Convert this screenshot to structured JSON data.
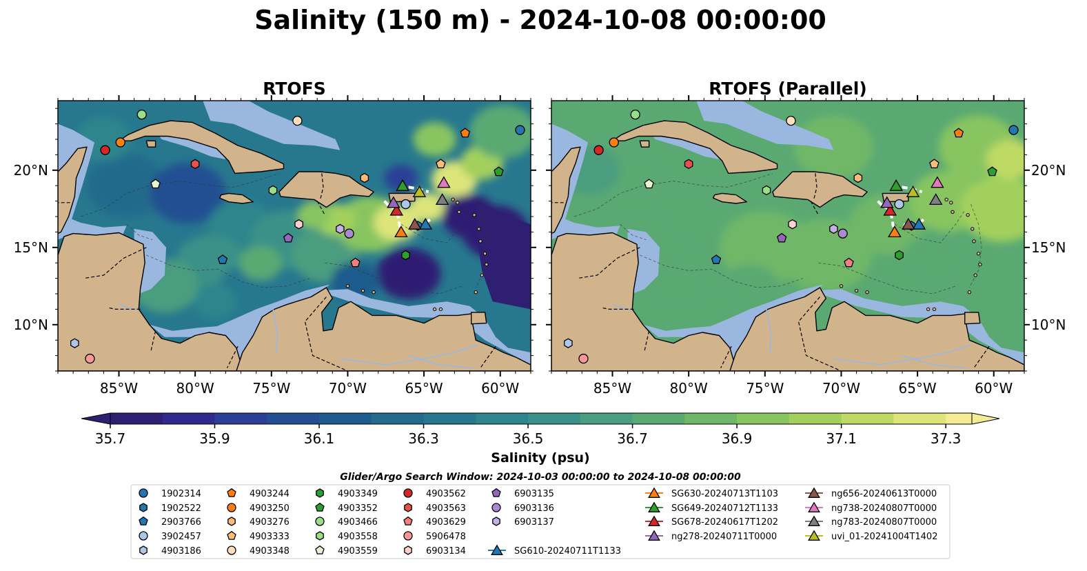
{
  "figure": {
    "title": "Salinity (150 m) - 2024-10-08 00:00:00",
    "search_window": "Glider/Argo Search Window: 2024-10-03 00:00:00 to 2024-10-08 00:00:00"
  },
  "colors": {
    "land": "#d2b48c",
    "shelf": "#9ab7e0",
    "glider_track": "#ffffff"
  },
  "chart_data": {
    "type": "heatmap",
    "xlim": [
      -89,
      -58
    ],
    "ylim": [
      7,
      24.5
    ],
    "x_ticks": [
      -85,
      -80,
      -75,
      -70,
      -65,
      -60
    ],
    "x_tick_labels": [
      "85°W",
      "80°W",
      "75°W",
      "70°W",
      "65°W",
      "60°W"
    ],
    "y_ticks": [
      10,
      15,
      20
    ],
    "y_tick_labels": [
      "10°N",
      "15°N",
      "20°N"
    ],
    "panels": [
      {
        "title": "RTOFS"
      },
      {
        "title": "RTOFS (Parallel)"
      }
    ],
    "colorbar": {
      "label": "Salinity (psu)",
      "min": 35.7,
      "max": 37.35,
      "extend": "both",
      "ticks": [
        35.7,
        35.9,
        36.1,
        36.3,
        36.5,
        36.7,
        36.9,
        37.1,
        37.3
      ],
      "tick_labels": [
        "35.7",
        "35.9",
        "36.1",
        "36.3",
        "36.5",
        "36.7",
        "36.9",
        "37.1",
        "37.3"
      ],
      "levels": [
        35.7,
        35.8,
        35.9,
        36.0,
        36.1,
        36.2,
        36.3,
        36.4,
        36.5,
        36.6,
        36.7,
        36.8,
        36.9,
        37.0,
        37.1,
        37.2,
        37.3,
        37.35
      ],
      "colors": [
        "#2e1f73",
        "#302a8c",
        "#2c3f96",
        "#234f92",
        "#1f5b8c",
        "#236a8c",
        "#27788e",
        "#2e858c",
        "#3a9188",
        "#4b9d7f",
        "#5aa973",
        "#6fb768",
        "#88c561",
        "#a3d05d",
        "#bfd965",
        "#dce47a",
        "#f4ec95"
      ]
    },
    "series": [
      {
        "name": "1902314",
        "marker": "circle",
        "color": "#1f77b4",
        "lon": -58.7,
        "lat": 22.6
      },
      {
        "name": "1902522",
        "marker": "hexagon",
        "color": "#1f77b4",
        "lon": -65.4,
        "lat": 16.4
      },
      {
        "name": "2903766",
        "marker": "pentagon",
        "color": "#1f77b4",
        "lon": -78.2,
        "lat": 14.2
      },
      {
        "name": "3902457",
        "marker": "circle",
        "color": "#aec7e8",
        "lon": -66.2,
        "lat": 17.8
      },
      {
        "name": "4903186",
        "marker": "hexagon",
        "color": "#aec7e8",
        "lon": -87.9,
        "lat": 8.8
      },
      {
        "name": "4903244",
        "marker": "pentagon",
        "color": "#ff7f0e",
        "lon": -62.3,
        "lat": 22.4
      },
      {
        "name": "4903250",
        "marker": "circle",
        "color": "#ff7f0e",
        "lon": -84.9,
        "lat": 21.8
      },
      {
        "name": "4903276",
        "marker": "hexagon",
        "color": "#ffbb78",
        "lon": -68.9,
        "lat": 19.5
      },
      {
        "name": "4903333",
        "marker": "pentagon",
        "color": "#ffbb78",
        "lon": -63.9,
        "lat": 20.4
      },
      {
        "name": "4903348",
        "marker": "circle",
        "color": "#ffdfbf",
        "lon": -73.3,
        "lat": 23.2
      },
      {
        "name": "4903349",
        "marker": "hexagon",
        "color": "#2ca02c",
        "lon": -66.2,
        "lat": 14.5
      },
      {
        "name": "4903352",
        "marker": "pentagon",
        "color": "#2ca02c",
        "lon": -60.1,
        "lat": 19.9
      },
      {
        "name": "4903466",
        "marker": "circle",
        "color": "#98df8a",
        "lon": -83.5,
        "lat": 23.6
      },
      {
        "name": "4903558",
        "marker": "hexagon",
        "color": "#98df8a",
        "lon": -74.9,
        "lat": 18.7
      },
      {
        "name": "4903559",
        "marker": "pentagon",
        "color": "#e5f5d0",
        "lon": -82.6,
        "lat": 19.1
      },
      {
        "name": "4903562",
        "marker": "circle",
        "color": "#d62728",
        "lon": -85.9,
        "lat": 21.3
      },
      {
        "name": "4903563",
        "marker": "hexagon",
        "color": "#e8504a",
        "lon": -80.0,
        "lat": 20.4
      },
      {
        "name": "4903629",
        "marker": "pentagon",
        "color": "#f08080",
        "lon": -69.5,
        "lat": 14.0
      },
      {
        "name": "5906478",
        "marker": "circle",
        "color": "#ff9896",
        "lon": -86.9,
        "lat": 7.8
      },
      {
        "name": "6903134",
        "marker": "hexagon",
        "color": "#ffd0d0",
        "lon": -73.2,
        "lat": 16.5
      },
      {
        "name": "6903135",
        "marker": "pentagon",
        "color": "#9467bd",
        "lon": -73.9,
        "lat": 15.6
      },
      {
        "name": "6903136",
        "marker": "circle",
        "color": "#a98bd0",
        "lon": -69.9,
        "lat": 15.9
      },
      {
        "name": "6903137",
        "marker": "hexagon",
        "color": "#c5b0e6",
        "lon": -70.5,
        "lat": 16.2
      },
      {
        "name": "SG610-20240711T1133",
        "marker": "triangle",
        "color": "#1f77b4",
        "lon": -64.9,
        "lat": 16.5
      },
      {
        "name": "SG630-20240713T1103",
        "marker": "triangle",
        "color": "#ff7f0e",
        "lon": -66.5,
        "lat": 16.0
      },
      {
        "name": "SG649-20240712T1133",
        "marker": "triangle",
        "color": "#2ca02c",
        "lon": -66.4,
        "lat": 19.0
      },
      {
        "name": "SG678-20240617T1202",
        "marker": "triangle",
        "color": "#d62728",
        "lon": -66.8,
        "lat": 17.4
      },
      {
        "name": "ng278-20240711T0000",
        "marker": "triangle",
        "color": "#9467bd",
        "lon": -67.0,
        "lat": 17.9
      },
      {
        "name": "ng656-20240613T0000",
        "marker": "triangle",
        "color": "#8c564b",
        "lon": -65.6,
        "lat": 16.5
      },
      {
        "name": "ng738-20240807T0000",
        "marker": "triangle",
        "color": "#e377c2",
        "lon": -63.7,
        "lat": 19.2
      },
      {
        "name": "ng783-20240807T0000",
        "marker": "triangle",
        "color": "#7f7f7f",
        "lon": -63.8,
        "lat": 18.1
      },
      {
        "name": "uvi_01-20241004T1402",
        "marker": "triangle",
        "color": "#bcbd22",
        "lon": -65.3,
        "lat": 18.6
      }
    ]
  }
}
